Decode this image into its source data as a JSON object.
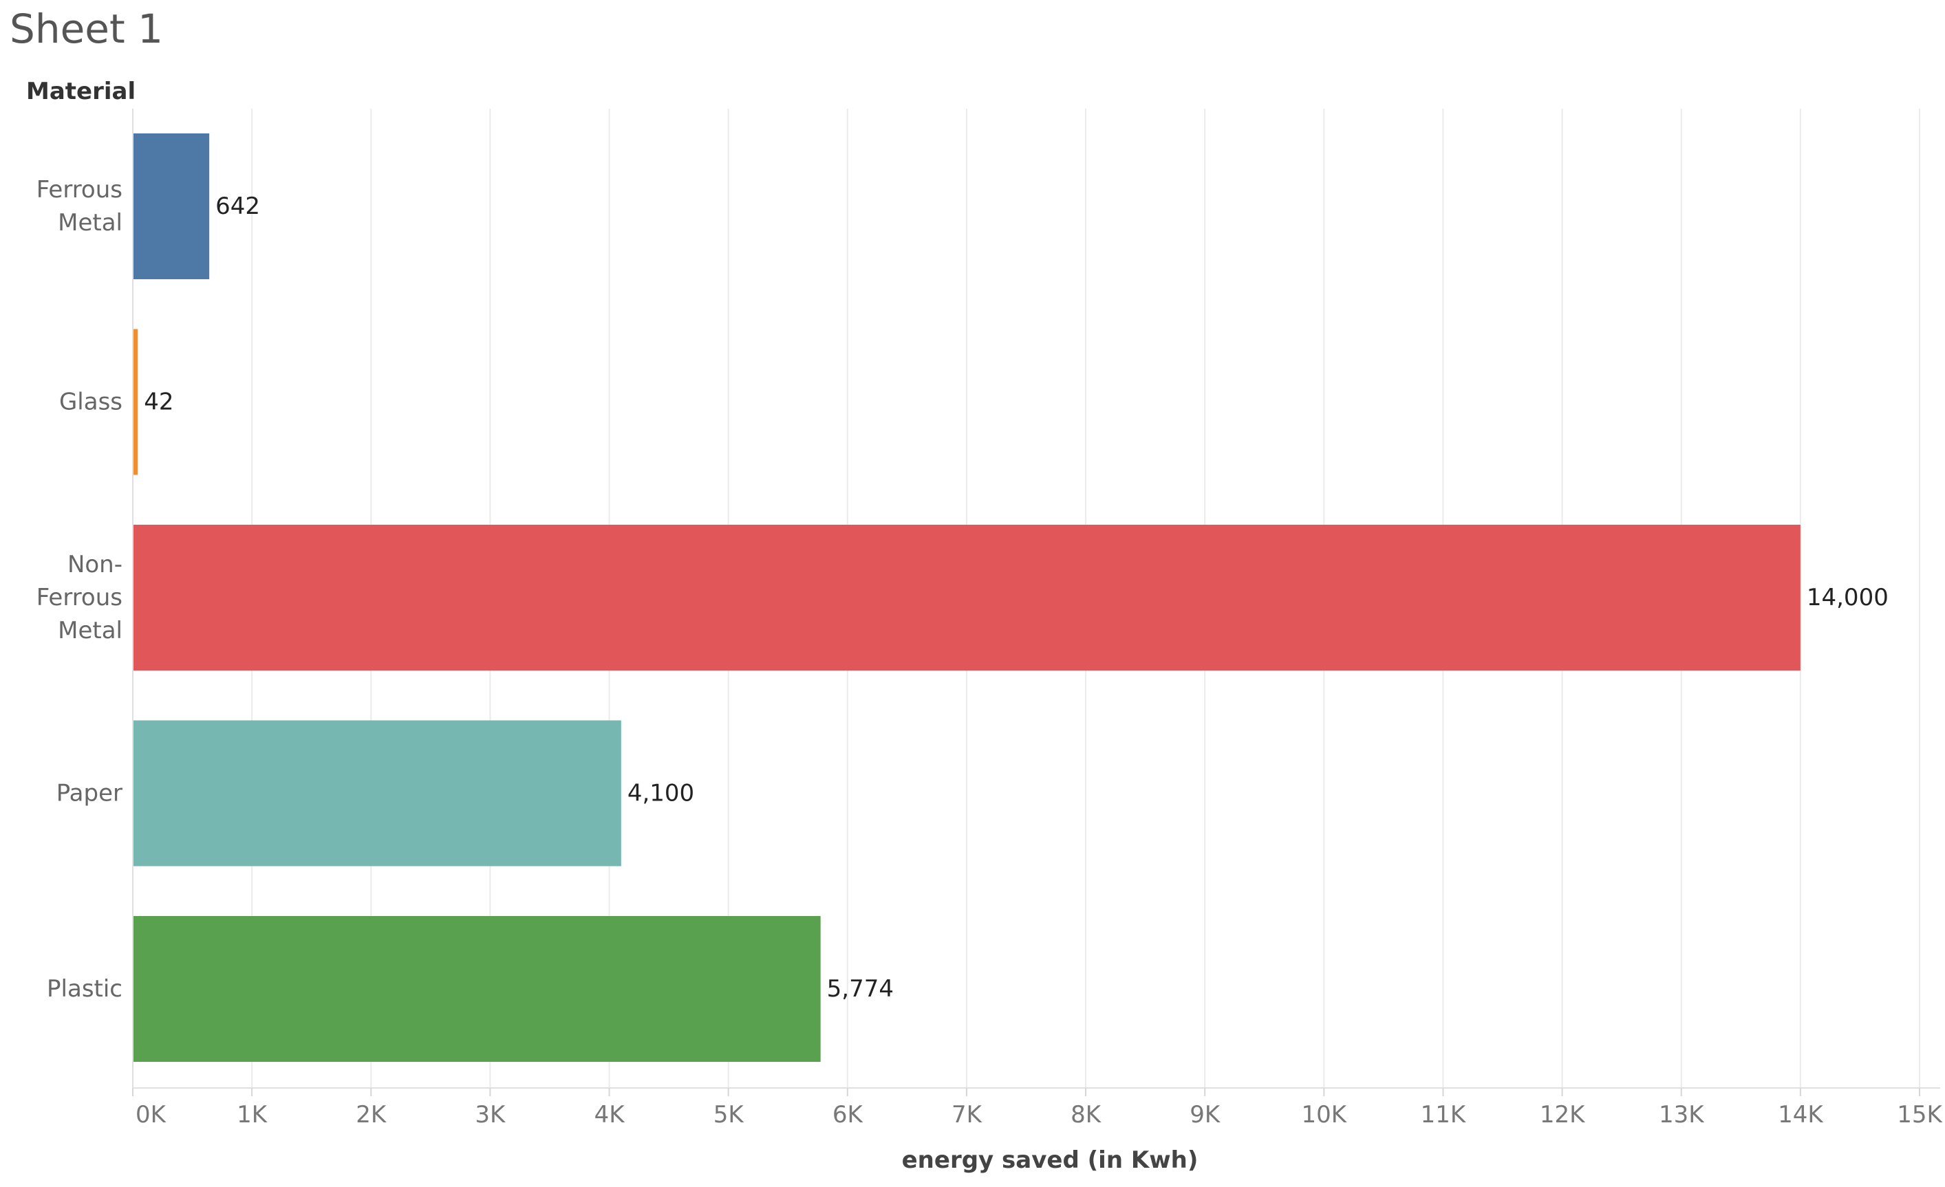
{
  "sheet": {
    "title": "Sheet 1"
  },
  "chart_data": {
    "type": "bar",
    "orientation": "horizontal",
    "row_header": "Material",
    "categories": [
      "Ferrous Metal",
      "Glass",
      "Non-Ferrous Metal",
      "Paper",
      "Plastic"
    ],
    "category_lines": [
      [
        "Ferrous",
        "Metal"
      ],
      [
        "Glass"
      ],
      [
        "Non-",
        "Ferrous",
        "Metal"
      ],
      [
        "Paper"
      ],
      [
        "Plastic"
      ]
    ],
    "values": [
      642,
      42,
      14000,
      4100,
      5774
    ],
    "value_labels": [
      "642",
      "42",
      "14,000",
      "4,100",
      "5,774"
    ],
    "colors": [
      "#4e79a7",
      "#f28e2b",
      "#e15759",
      "#76b7b2",
      "#59a14f"
    ],
    "xlabel": "energy saved (in Kwh)",
    "xlim": [
      0,
      15000
    ],
    "xticks": [
      0,
      1000,
      2000,
      3000,
      4000,
      5000,
      6000,
      7000,
      8000,
      9000,
      10000,
      11000,
      12000,
      13000,
      14000,
      15000
    ],
    "xtick_labels": [
      "0K",
      "1K",
      "2K",
      "3K",
      "4K",
      "5K",
      "6K",
      "7K",
      "8K",
      "9K",
      "10K",
      "11K",
      "12K",
      "13K",
      "14K",
      "15K"
    ],
    "grid": true,
    "legend": "none"
  }
}
